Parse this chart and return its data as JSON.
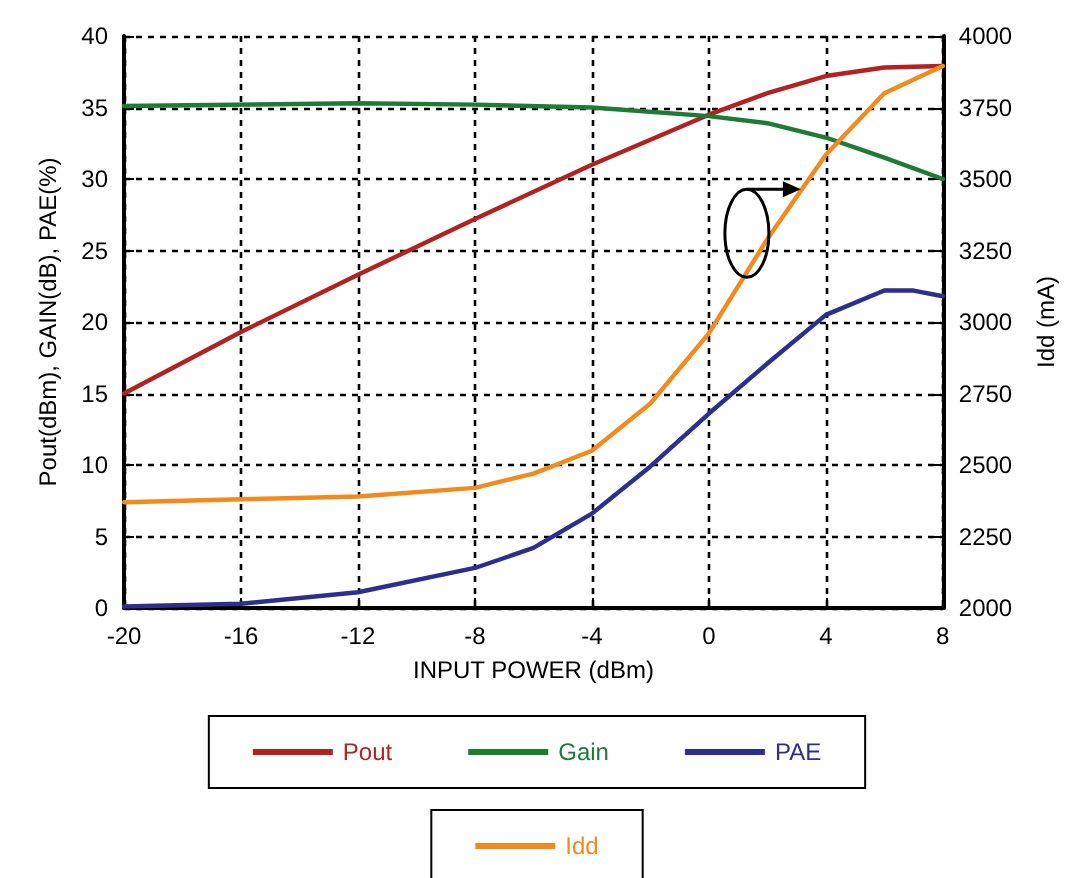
{
  "chart_data": {
    "type": "line",
    "xlabel": "INPUT POWER (dBm)",
    "ylabel": "Pout(dBm), GAIN(dB), PAE(%)",
    "y2label": "Idd (mA)",
    "xlim": [
      -20,
      8
    ],
    "xticks": [
      -20,
      -16,
      -12,
      -8,
      -4,
      0,
      4,
      8
    ],
    "ylim": [
      0,
      40
    ],
    "yticks": [
      0,
      5,
      10,
      15,
      20,
      25,
      30,
      35,
      40
    ],
    "y2lim": [
      2000,
      4000
    ],
    "y2ticks": [
      2000,
      2250,
      2500,
      2750,
      3000,
      3250,
      3500,
      3750,
      4000
    ],
    "grid": true,
    "legend": "bottom",
    "line_style": "solid",
    "marker": "none",
    "series": [
      {
        "name": "Pout",
        "color": "#b22222",
        "x": [
          -20,
          -16,
          -12,
          -8,
          -4,
          0,
          2,
          4,
          6,
          8
        ],
        "values": [
          15.0,
          19.3,
          23.3,
          27.2,
          31.0,
          34.5,
          36.0,
          37.2,
          37.8,
          37.9
        ]
      },
      {
        "name": "Gain",
        "color": "#1e7b34",
        "x": [
          -20,
          -12,
          -8,
          -4,
          0,
          2,
          4,
          6,
          8
        ],
        "values": [
          35.1,
          35.3,
          35.2,
          35.0,
          34.4,
          33.9,
          32.9,
          31.5,
          30.0
        ]
      },
      {
        "name": "PAE",
        "color": "#2e2e8f",
        "x": [
          -20,
          -16,
          -12,
          -8,
          -6,
          -4,
          -2,
          0,
          2,
          4,
          6,
          7,
          8
        ],
        "values": [
          0.1,
          0.3,
          1.1,
          2.8,
          4.2,
          6.6,
          9.9,
          13.6,
          17.1,
          20.5,
          22.2,
          22.2,
          21.8
        ]
      },
      {
        "name": "Idd",
        "color": "#f28a1e",
        "axis": "y2",
        "x": [
          -20,
          -16,
          -12,
          -8,
          -6,
          -4,
          -2,
          0,
          2,
          4,
          6,
          8
        ],
        "values": [
          2370,
          2380,
          2390,
          2420,
          2470,
          2550,
          2715,
          2960,
          3290,
          3585,
          3800,
          3895
        ]
      }
    ]
  }
}
